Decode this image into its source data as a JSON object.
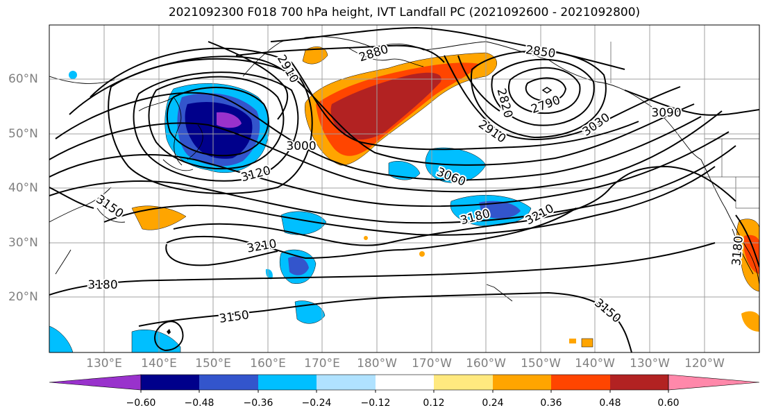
{
  "title": "2021092300 F018 700 hPa height, IVT Landfall PC (2021092600 - 2021092800)",
  "lat_labels": [
    "60°N",
    "50°N",
    "40°N",
    "30°N",
    "20°N"
  ],
  "lon_labels": [
    "130°E",
    "140°E",
    "150°E",
    "160°E",
    "170°E",
    "180°W",
    "170°W",
    "160°W",
    "150°W",
    "140°W",
    "130°W",
    "120°W"
  ],
  "contour_labels": [
    "2880",
    "2850",
    "2910",
    "2820",
    "2790",
    "2910",
    "3030",
    "3090",
    "3000",
    "3120",
    "3060",
    "3150",
    "3180",
    "3210",
    "3210",
    "3180",
    "3150",
    "3150",
    "3180"
  ],
  "colorbar": {
    "labels": [
      "−0.60",
      "−0.48",
      "−0.36",
      "−0.24",
      "−0.12",
      "0.12",
      "0.24",
      "0.36",
      "0.48",
      "0.60"
    ],
    "colors": [
      "#9932cc",
      "#00008b",
      "#3355cc",
      "#00bfff",
      "#b0e2ff",
      "#ffffff",
      "#ffe97f",
      "#ffa500",
      "#ff4500",
      "#b22222",
      "#ff88aa"
    ]
  }
}
